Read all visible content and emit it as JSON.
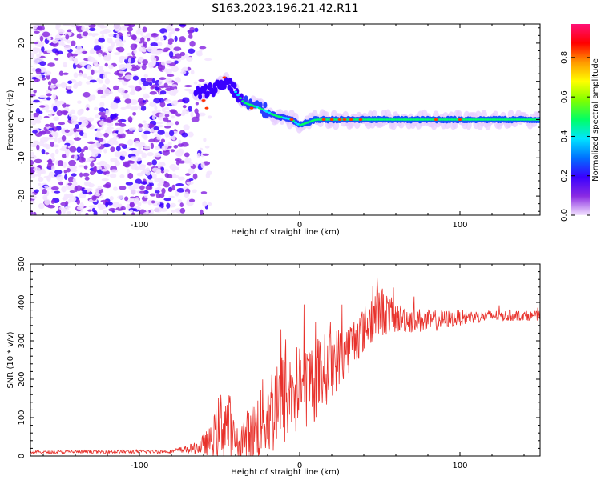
{
  "title": "S163.2023.196.21.42.R11",
  "chart_data": [
    {
      "type": "heatmap",
      "xlabel": "Height of straight line (km)",
      "ylabel": "Frequency (Hz)",
      "xlim": [
        -168,
        150
      ],
      "ylim": [
        -25,
        25
      ],
      "xticks": [
        -100,
        0,
        100
      ],
      "yticks": [
        -20,
        -10,
        0,
        10,
        20
      ],
      "colorbar": {
        "label": "Normalized spectral amplitude",
        "range": [
          0,
          0.97
        ],
        "ticks": [
          0.0,
          0.2,
          0.4,
          0.6,
          0.8
        ],
        "colors": [
          "#f3e4ff",
          "#8a2be2",
          "#3a00ff",
          "#0070ff",
          "#00e5ff",
          "#00ff66",
          "#7fff00",
          "#ffff00",
          "#ff9900",
          "#ff0000",
          "#ff1177"
        ]
      },
      "ridge": {
        "x": [
          -60,
          -45,
          -35,
          -25,
          -15,
          -5,
          0,
          10,
          20,
          40,
          60,
          100,
          150
        ],
        "y": [
          7,
          10,
          4.5,
          3,
          1,
          0,
          -1.5,
          0,
          0,
          0,
          0,
          0,
          0
        ]
      }
    },
    {
      "type": "line",
      "xlabel": "Height of straight line (km)",
      "ylabel": "SNR (10 * v/v)",
      "xlim": [
        -168,
        150
      ],
      "ylim": [
        0,
        500
      ],
      "xticks": [
        -100,
        0,
        100
      ],
      "yticks": [
        0,
        100,
        200,
        300,
        400,
        500
      ],
      "color": "#e8312b",
      "series_envelope": {
        "x": [
          -168,
          -80,
          -65,
          -55,
          -50,
          -45,
          -40,
          -30,
          -20,
          -10,
          0,
          10,
          20,
          30,
          40,
          45,
          50,
          60,
          80,
          100,
          120,
          150
        ],
        "mean": [
          10,
          12,
          20,
          40,
          80,
          90,
          30,
          60,
          110,
          150,
          175,
          200,
          240,
          280,
          330,
          360,
          380,
          360,
          350,
          360,
          365,
          365
        ],
        "spread": [
          4,
          5,
          15,
          40,
          90,
          110,
          40,
          80,
          120,
          130,
          120,
          110,
          90,
          70,
          60,
          70,
          70,
          40,
          30,
          20,
          15,
          12
        ]
      }
    }
  ]
}
